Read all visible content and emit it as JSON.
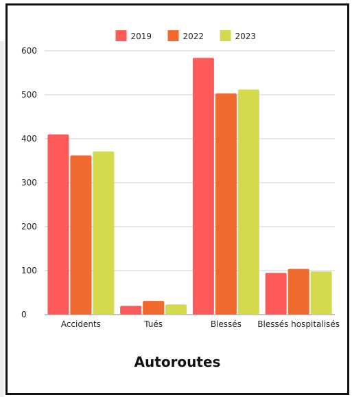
{
  "chart_data": {
    "type": "bar",
    "title": "Autoroutes",
    "categories": [
      "Accidents",
      "Tués",
      "Blessés",
      "Blessés hospitalisés"
    ],
    "series": [
      {
        "name": "2019",
        "color": "#ff5a5a",
        "values": [
          410,
          20,
          584,
          95
        ]
      },
      {
        "name": "2022",
        "color": "#f06a2f",
        "values": [
          362,
          31,
          503,
          104
        ]
      },
      {
        "name": "2023",
        "color": "#d3da4c",
        "values": [
          371,
          23,
          512,
          98
        ]
      }
    ],
    "y_ticks": [
      0,
      100,
      200,
      300,
      400,
      500,
      600
    ],
    "ylim": [
      0,
      600
    ],
    "legend_position": "top-center",
    "grid": true
  }
}
